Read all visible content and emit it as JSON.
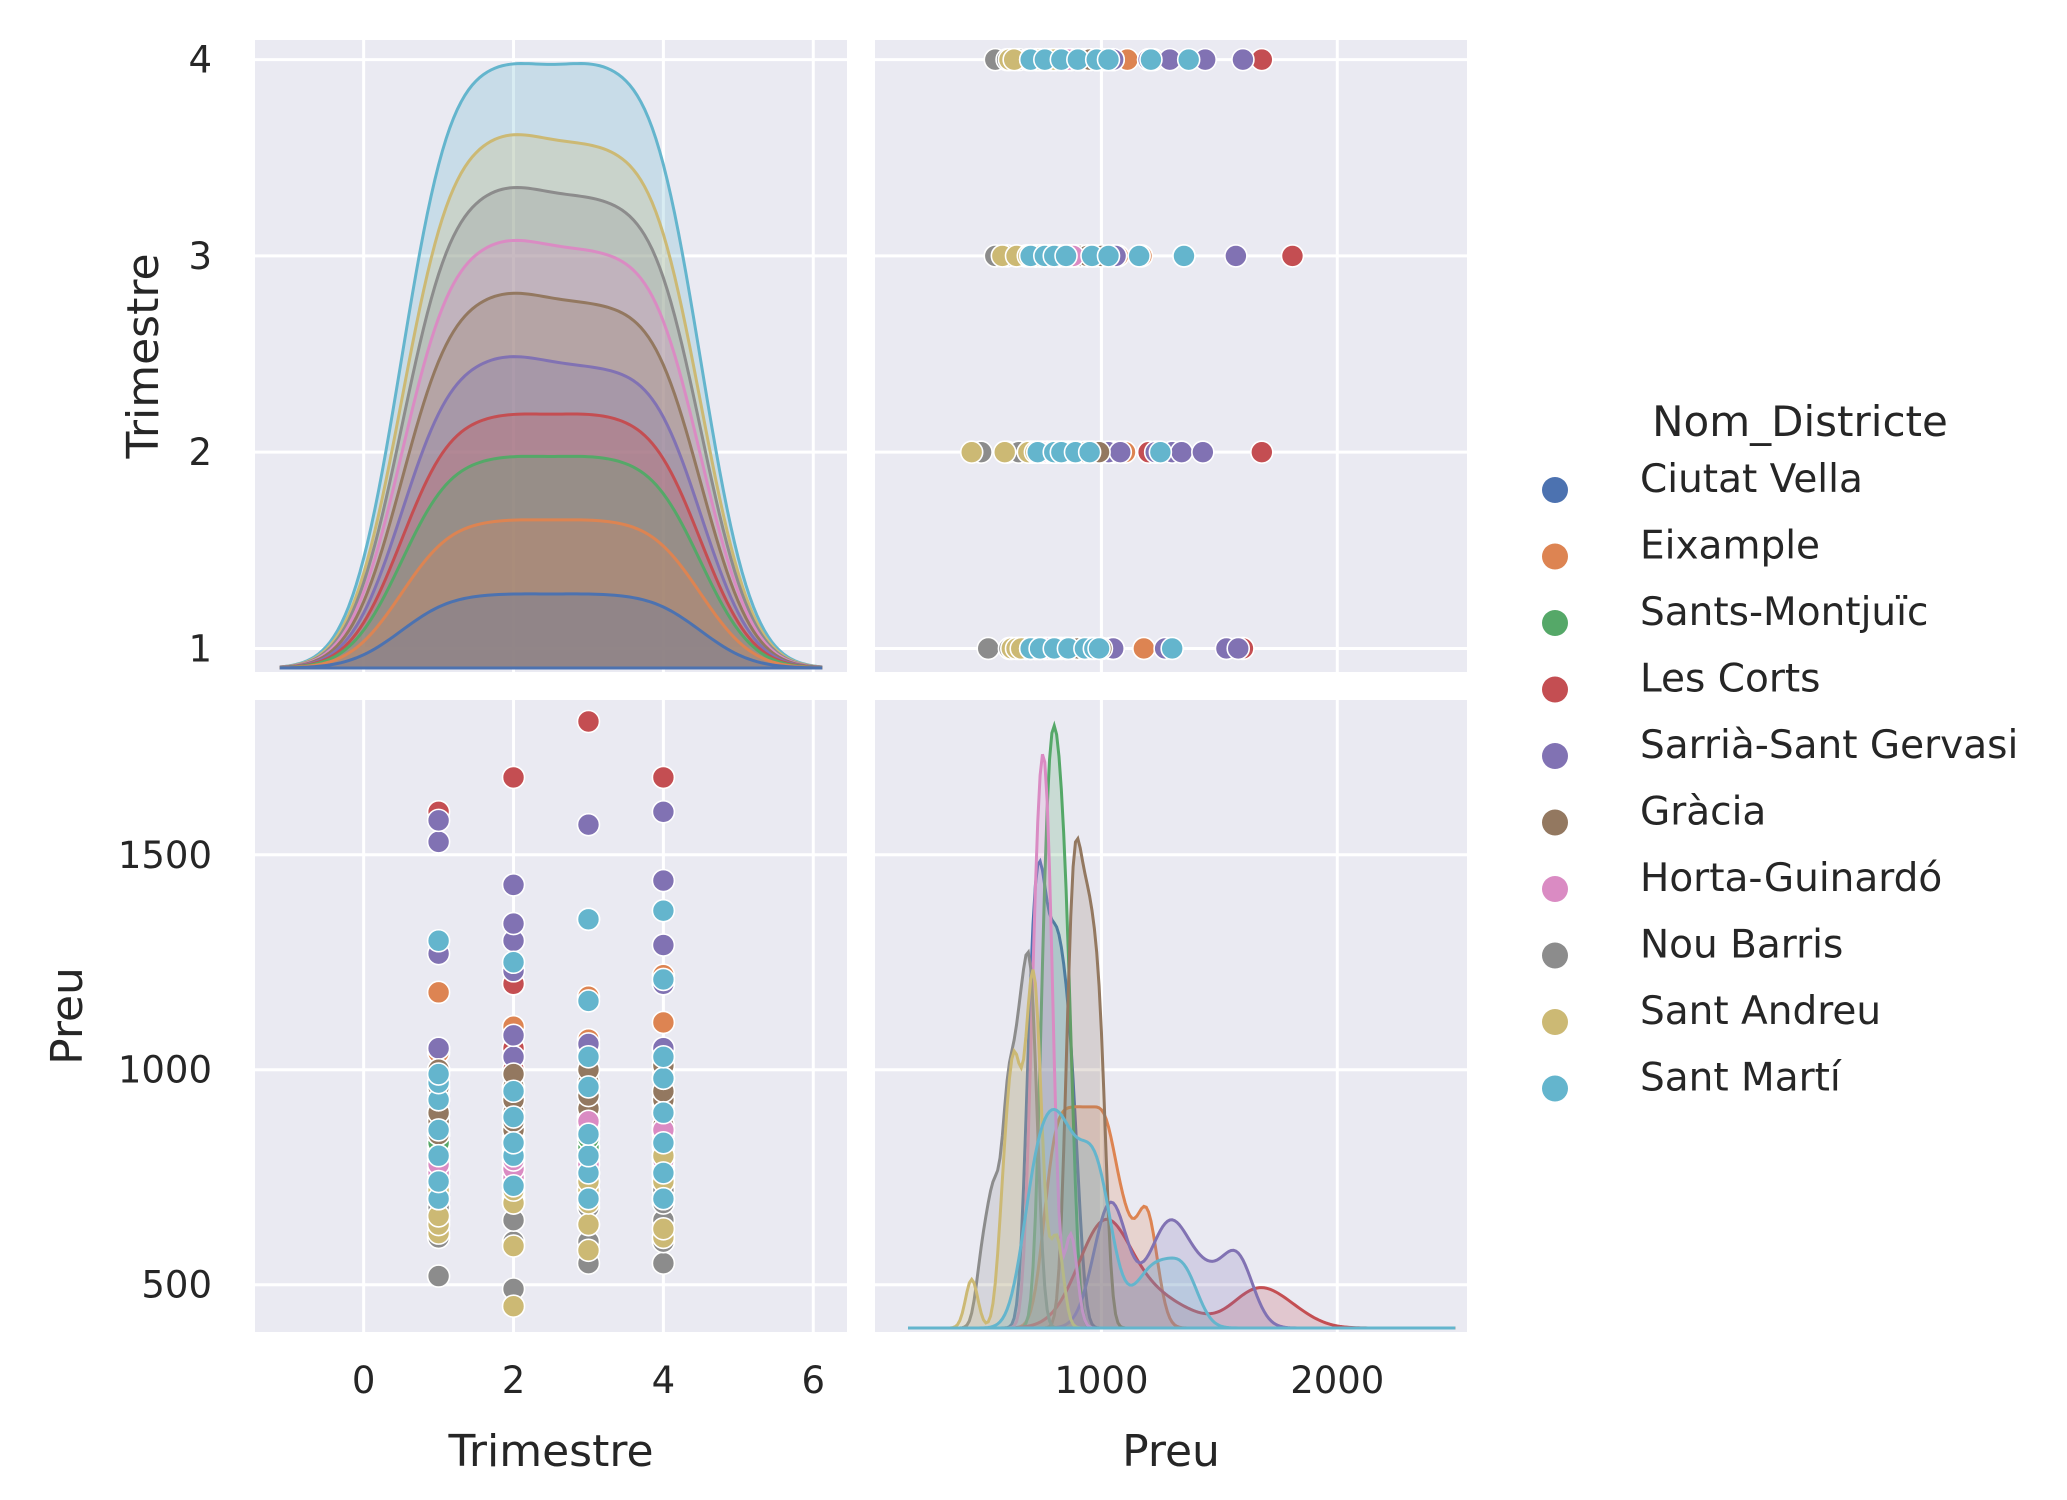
{
  "chart_data": {
    "type": "pairplot",
    "variables": [
      "Trimestre",
      "Preu"
    ],
    "hue_variable": "Nom_Districte",
    "legend_title": "Nom_Districte",
    "legend_position": "right",
    "style": {
      "background": "#EAEAF2",
      "grid": true
    },
    "colors": {
      "Ciutat Vella": "#4C72B0",
      "Eixample": "#DD8452",
      "Sants-Montjuïc": "#55A868",
      "Les Corts": "#C44E52",
      "Sarrià-Sant Gervasi": "#8172B3",
      "Gràcia": "#937860",
      "Horta-Guinardó": "#DA8BC3",
      "Nou Barris": "#8C8C8C",
      "Sant Andreu": "#CCB974",
      "Sant Martí": "#64B5CD"
    },
    "districts": [
      "Ciutat Vella",
      "Eixample",
      "Sants-Montjuïc",
      "Les Corts",
      "Sarrià-Sant Gervasi",
      "Gràcia",
      "Horta-Guinardó",
      "Nou Barris",
      "Sant Andreu",
      "Sant Martí"
    ],
    "axes": {
      "Trimestre": {
        "label": "Trimestre",
        "range": [
          -1.45,
          6.45
        ],
        "ticks": [
          0,
          2,
          4,
          6
        ],
        "yrange": [
          0.88,
          4.1
        ],
        "yticks": [
          1,
          2,
          3,
          4
        ]
      },
      "Preu": {
        "label": "Preu",
        "range": [
          40,
          2550
        ],
        "ticks": [
          1000,
          2000
        ],
        "yrange": [
          390,
          1860
        ],
        "yticks": [
          500,
          1000,
          1500
        ]
      }
    },
    "points": {
      "Ciutat Vella": {
        "1": [
          680,
          700,
          730,
          760,
          800,
          820,
          850
        ],
        "2": [
          700,
          720,
          740,
          770,
          800,
          830,
          870
        ],
        "3": [
          720,
          740,
          760,
          790,
          820,
          860,
          890
        ],
        "4": [
          700,
          730,
          760,
          790,
          830,
          860,
          900
        ]
      },
      "Eixample": {
        "1": [
          800,
          850,
          900,
          950,
          1000,
          1040,
          1180
        ],
        "2": [
          780,
          840,
          900,
          960,
          1030,
          1100,
          1200
        ],
        "3": [
          760,
          820,
          880,
          940,
          1000,
          1070,
          1170
        ],
        "4": [
          800,
          860,
          920,
          980,
          1030,
          1110,
          1220
        ]
      },
      "Sants-Montjuïc": {
        "1": [
          740,
          770,
          790,
          810,
          830,
          850
        ],
        "2": [
          750,
          770,
          790,
          810,
          830,
          860
        ],
        "3": [
          760,
          780,
          800,
          820,
          840,
          870
        ],
        "4": [
          760,
          780,
          800,
          820,
          850,
          870
        ]
      },
      "Les Corts": {
        "1": [
          900,
          1000,
          1050,
          1600
        ],
        "2": [
          1000,
          1050,
          1200,
          1680
        ],
        "3": [
          960,
          1050,
          1350,
          1810
        ],
        "4": [
          1000,
          1050,
          1200,
          1680
        ]
      },
      "Sarrià-Sant Gervasi": {
        "1": [
          1000,
          1050,
          1270,
          1530,
          1580
        ],
        "2": [
          1030,
          1080,
          1230,
          1300,
          1340,
          1430
        ],
        "3": [
          1000,
          1060,
          1350,
          1570
        ],
        "4": [
          1050,
          1200,
          1290,
          1440,
          1600
        ]
      },
      "Gràcia": {
        "1": [
          850,
          880,
          900,
          930,
          960,
          1000
        ],
        "2": [
          860,
          880,
          900,
          930,
          960,
          990
        ],
        "3": [
          870,
          890,
          910,
          940,
          970,
          1000
        ],
        "4": [
          870,
          900,
          930,
          950,
          980,
          1010
        ]
      },
      "Horta-Guinardó": {
        "1": [
          700,
          720,
          740,
          760,
          780
        ],
        "2": [
          700,
          730,
          750,
          770,
          790
        ],
        "3": [
          720,
          740,
          760,
          780,
          880
        ],
        "4": [
          730,
          750,
          770,
          790,
          860
        ]
      },
      "Nou Barris": {
        "1": [
          520,
          610,
          650,
          680,
          700
        ],
        "2": [
          490,
          600,
          650,
          690,
          710
        ],
        "3": [
          550,
          600,
          640,
          680,
          720
        ],
        "4": [
          550,
          600,
          650,
          690,
          720
        ]
      },
      "Sant Andreu": {
        "1": [
          620,
          640,
          660,
          700,
          720
        ],
        "2": [
          450,
          590,
          690,
          720,
          820
        ],
        "3": [
          580,
          640,
          690,
          720,
          740
        ],
        "4": [
          610,
          630,
          700,
          740,
          800
        ]
      },
      "Sant Martí": {
        "1": [
          700,
          740,
          800,
          860,
          930,
          970,
          990,
          1300
        ],
        "2": [
          730,
          800,
          830,
          890,
          950,
          1250
        ],
        "3": [
          700,
          760,
          800,
          850,
          960,
          1030,
          1160,
          1350
        ],
        "4": [
          700,
          760,
          830,
          900,
          980,
          1030,
          1210,
          1370
        ]
      }
    }
  }
}
